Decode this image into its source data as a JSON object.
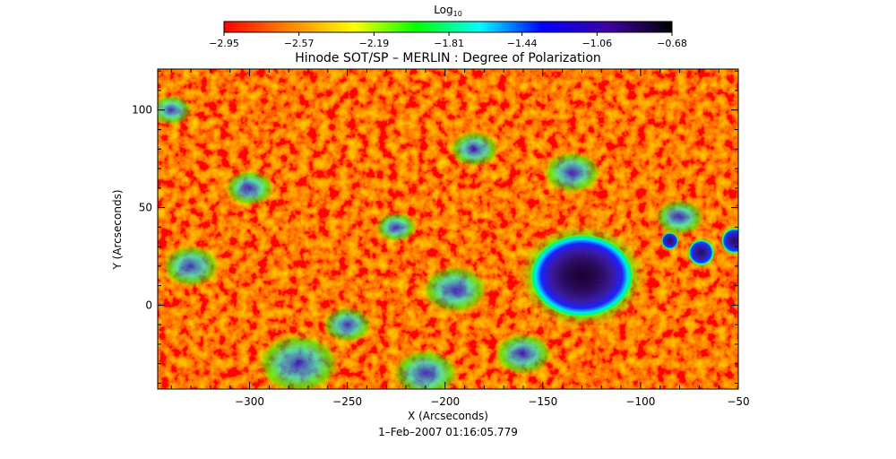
{
  "chart_data": {
    "type": "heatmap",
    "title": "Hinode SOT/SP – MERLIN : Degree of Polarization",
    "xlabel": "X (Arcseconds)",
    "ylabel": "Y (Arcseconds)",
    "xlim": [
      -347,
      -50
    ],
    "ylim": [
      -43,
      121
    ],
    "x_ticks": [
      -300,
      -250,
      -200,
      -150,
      -100,
      -50
    ],
    "x_tick_labels": [
      "−300",
      "−250",
      "−200",
      "−150",
      "−100",
      "−50"
    ],
    "y_ticks": [
      0,
      50,
      100
    ],
    "y_tick_labels": [
      "0",
      "50",
      "100"
    ],
    "colorbar": {
      "label_base": "Log",
      "label_sub": "10",
      "min": -2.95,
      "max": -0.68,
      "ticks": [
        -2.95,
        -2.57,
        -2.19,
        -1.81,
        -1.44,
        -1.06,
        -0.68
      ],
      "tick_labels": [
        "−2.95",
        "−2.57",
        "−2.19",
        "−1.81",
        "−1.44",
        "−1.06",
        "−0.68"
      ],
      "colormap": [
        "#ff0000",
        "#ff8000",
        "#ffff00",
        "#00ff00",
        "#00ffff",
        "#0000ff",
        "#4000a0",
        "#000000"
      ]
    },
    "features": [
      {
        "name": "sunspot",
        "x": -130,
        "y": 15,
        "r": 14
      },
      {
        "name": "pore",
        "x": -69,
        "y": 27,
        "r": 3
      },
      {
        "name": "pore",
        "x": -52,
        "y": 33,
        "r": 3
      },
      {
        "name": "pore",
        "x": -85,
        "y": 33,
        "r": 2
      },
      {
        "name": "plage",
        "x": -135,
        "y": 68,
        "r": 7
      },
      {
        "name": "plage",
        "x": -80,
        "y": 45,
        "r": 6
      },
      {
        "name": "network",
        "x": -195,
        "y": 8,
        "r": 8
      },
      {
        "name": "network",
        "x": -275,
        "y": -30,
        "r": 10
      },
      {
        "name": "network",
        "x": -330,
        "y": 20,
        "r": 7
      },
      {
        "name": "network",
        "x": -210,
        "y": -35,
        "r": 8
      },
      {
        "name": "network",
        "x": -250,
        "y": -10,
        "r": 6
      },
      {
        "name": "network",
        "x": -185,
        "y": 80,
        "r": 6
      },
      {
        "name": "network",
        "x": -300,
        "y": 60,
        "r": 6
      },
      {
        "name": "network",
        "x": -160,
        "y": -25,
        "r": 7
      },
      {
        "name": "network",
        "x": -340,
        "y": 100,
        "r": 5
      },
      {
        "name": "network",
        "x": -225,
        "y": 40,
        "r": 5
      }
    ]
  },
  "footer": {
    "timestamp": "1–Feb–2007 01:16:05.779"
  }
}
